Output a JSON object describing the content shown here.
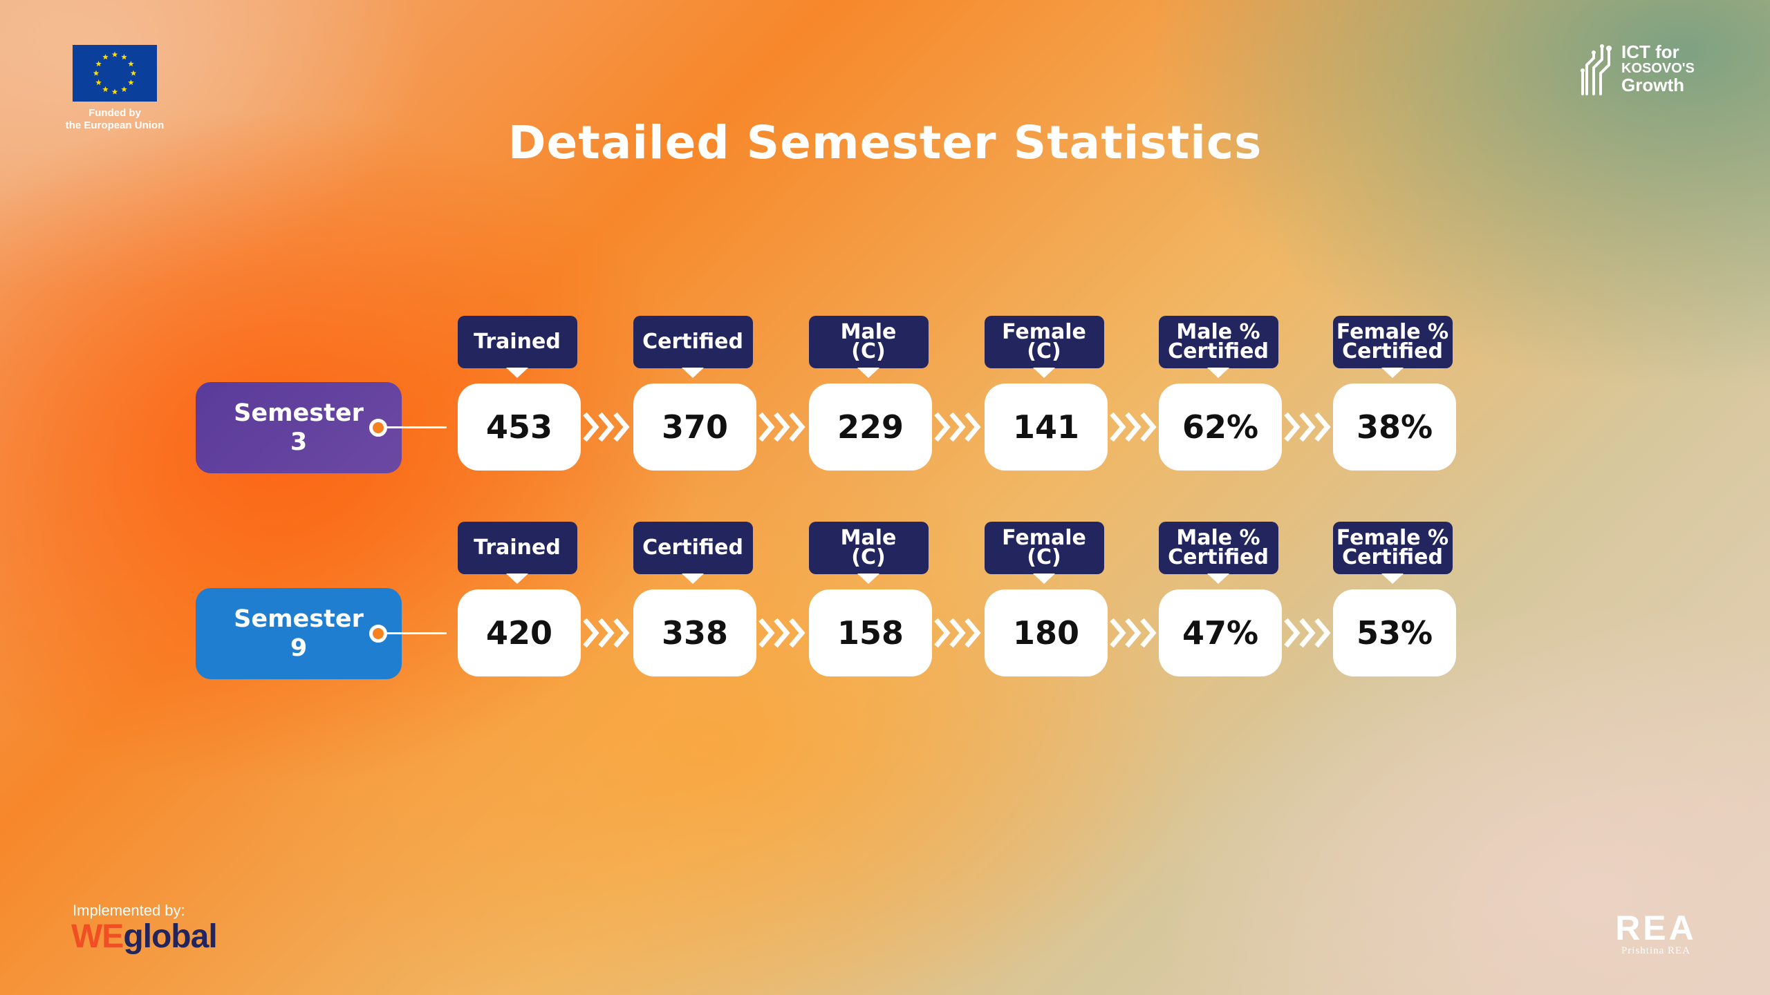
{
  "eu": {
    "caption_line1": "Funded by",
    "caption_line2": "the European Union",
    "icon": "eu-flag-icon"
  },
  "ict": {
    "line1": "ICT for",
    "line2": "KOSOVO'S",
    "line3": "Growth",
    "icon": "circuit-icon"
  },
  "title": "Detailed Semester Statistics",
  "rows": [
    {
      "semester_line1": "Semester",
      "semester_line2": "3",
      "color": "#5b3b9a",
      "labels": [
        [
          "Trained"
        ],
        [
          "Certified"
        ],
        [
          "Male",
          "(C)"
        ],
        [
          "Female",
          "(C)"
        ],
        [
          "Male %",
          "Certified"
        ],
        [
          "Female %",
          "Certified"
        ]
      ],
      "values": [
        "453",
        "370",
        "229",
        "141",
        "62%",
        "38%"
      ]
    },
    {
      "semester_line1": "Semester",
      "semester_line2": "9",
      "color": "#1f7ed0",
      "labels": [
        [
          "Trained"
        ],
        [
          "Certified"
        ],
        [
          "Male",
          "(C)"
        ],
        [
          "Female",
          "(C)"
        ],
        [
          "Male %",
          "Certified"
        ],
        [
          "Female %",
          "Certified"
        ]
      ],
      "values": [
        "420",
        "338",
        "158",
        "180",
        "47%",
        "53%"
      ]
    }
  ],
  "footer": {
    "implemented_by": "Implemented by:",
    "weglobal_we": "WE",
    "weglobal_rest": "global",
    "rea_main": "REA",
    "rea_sub": "Prishtina REA"
  },
  "colors": {
    "label_bg": "#23255e",
    "accent_orange": "#f58220"
  }
}
